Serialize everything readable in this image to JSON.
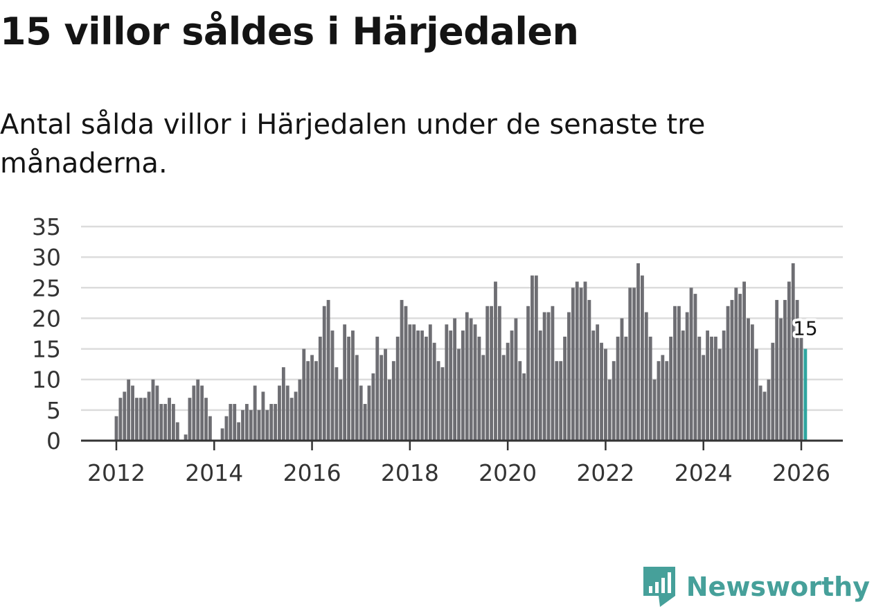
{
  "header": {
    "title": "15 villor såldes i Härjedalen",
    "subtitle": "Antal sålda villor i Härjedalen under de senaste tre månaderna."
  },
  "chart_data": {
    "type": "bar",
    "title": "15 villor såldes i Härjedalen",
    "subtitle": "Antal sålda villor i Härjedalen under de senaste tre månaderna.",
    "xlabel": "",
    "ylabel": "",
    "ylim": [
      0,
      35
    ],
    "yticks": [
      "0",
      "5",
      "10",
      "15",
      "20",
      "25",
      "30",
      "35"
    ],
    "xticks": [
      "2012",
      "2014",
      "2016",
      "2018",
      "2020",
      "2022",
      "2024",
      "2026"
    ],
    "grid": true,
    "start": "2012-01",
    "frequency": "monthly",
    "bar_color": "#6e6e73",
    "highlight_color": "#2fa59f",
    "highlight_label": "15",
    "values": [
      4,
      7,
      8,
      10,
      9,
      7,
      7,
      7,
      8,
      10,
      9,
      6,
      6,
      7,
      6,
      3,
      0,
      1,
      7,
      9,
      10,
      9,
      7,
      4,
      0,
      0,
      2,
      4,
      6,
      6,
      3,
      5,
      6,
      5,
      9,
      5,
      8,
      5,
      6,
      6,
      9,
      12,
      9,
      7,
      8,
      10,
      15,
      13,
      14,
      13,
      17,
      22,
      23,
      18,
      12,
      10,
      19,
      17,
      18,
      14,
      9,
      6,
      9,
      11,
      17,
      14,
      15,
      10,
      13,
      17,
      23,
      22,
      19,
      19,
      18,
      18,
      17,
      19,
      16,
      13,
      12,
      19,
      18,
      20,
      15,
      18,
      21,
      20,
      19,
      17,
      14,
      22,
      22,
      26,
      22,
      14,
      16,
      18,
      20,
      13,
      11,
      22,
      27,
      27,
      18,
      21,
      21,
      22,
      13,
      13,
      17,
      21,
      25,
      26,
      25,
      26,
      23,
      18,
      19,
      16,
      15,
      10,
      13,
      17,
      20,
      17,
      25,
      25,
      29,
      27,
      21,
      17,
      10,
      13,
      14,
      13,
      17,
      22,
      22,
      18,
      21,
      25,
      24,
      17,
      14,
      18,
      17,
      17,
      15,
      18,
      22,
      23,
      25,
      24,
      26,
      20,
      19,
      15,
      9,
      8,
      10,
      16,
      23,
      20,
      23,
      26,
      29,
      23,
      17,
      15
    ]
  },
  "brand": {
    "name": "Newsworthy",
    "color": "#46a09a",
    "icon": "newsworthy-logo-icon"
  }
}
